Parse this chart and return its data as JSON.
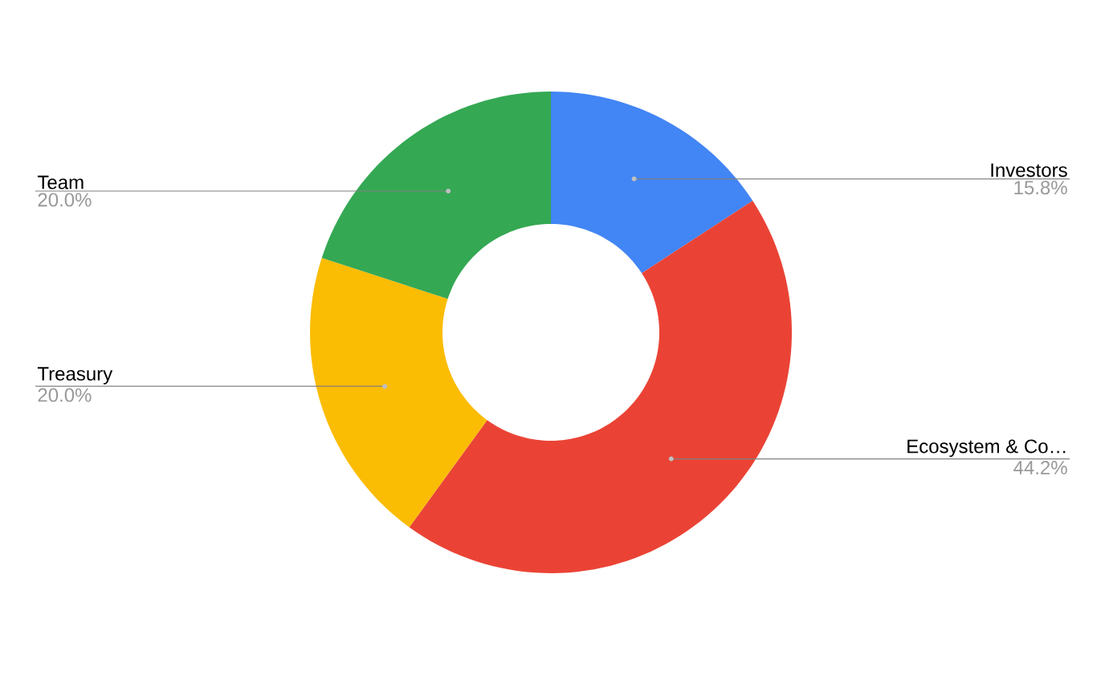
{
  "chart_data": {
    "type": "donut",
    "categories": [
      "Investors",
      "Ecosystem & Co…",
      "Treasury",
      "Team"
    ],
    "values": [
      15.8,
      44.2,
      20.0,
      20.0
    ],
    "value_labels": [
      "15.8%",
      "44.2%",
      "20.0%",
      "20.0%"
    ],
    "colors": [
      "#4285f4",
      "#ea4335",
      "#fbbc04",
      "#34a853"
    ]
  }
}
